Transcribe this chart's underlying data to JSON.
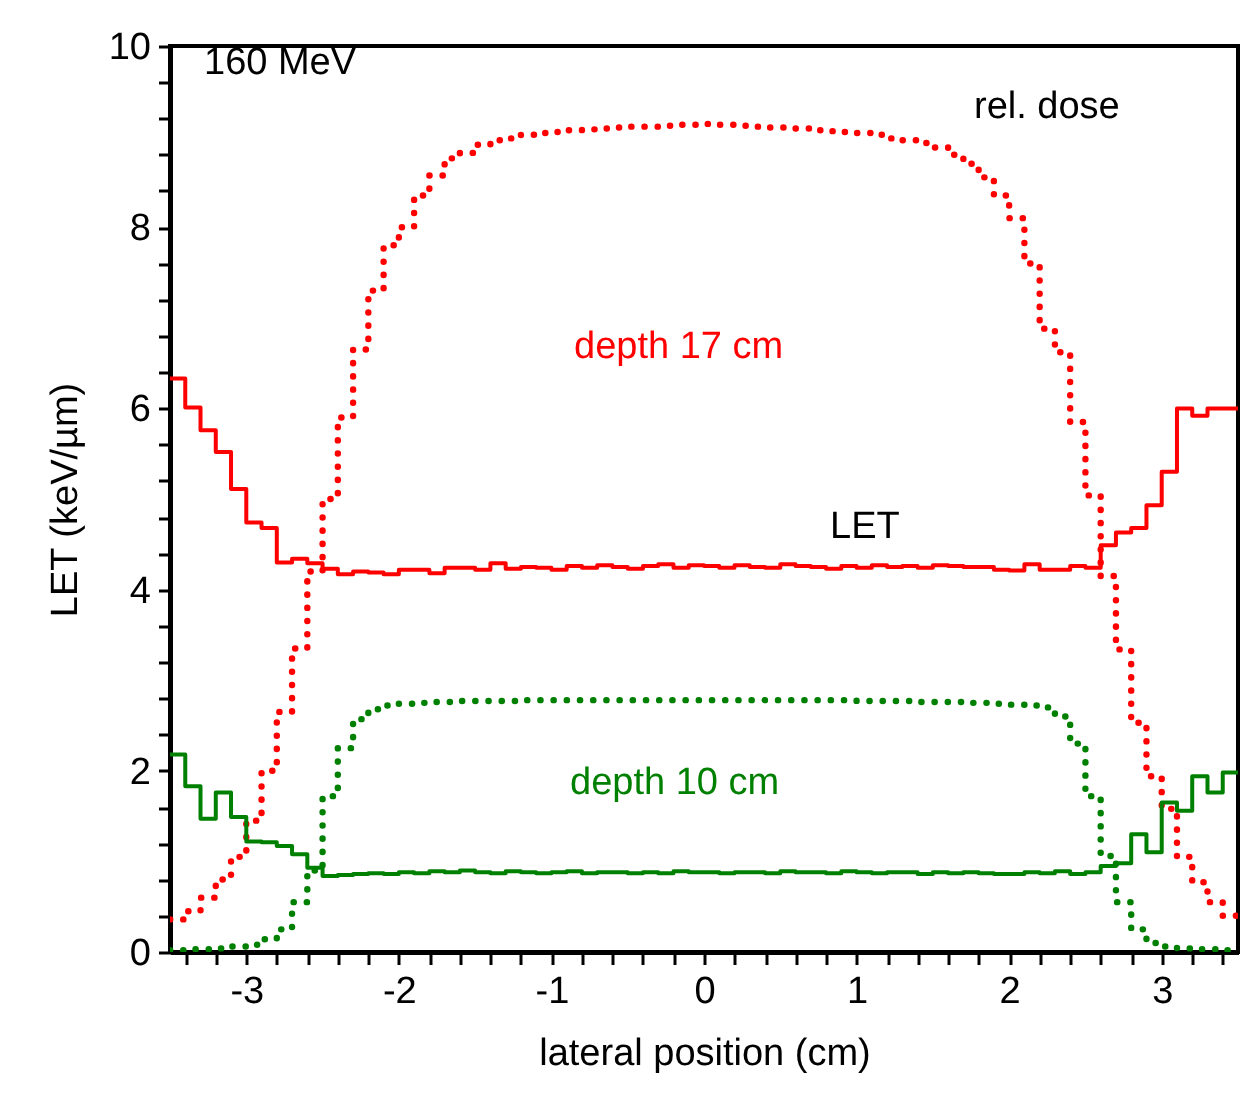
{
  "chart_data": {
    "type": "step",
    "xlabel": "lateral position (cm)",
    "ylabel": "LET (keV/µm)",
    "annotations": [
      "160 MeV",
      "rel. dose",
      "depth 17 cm",
      "LET",
      "depth 10 cm"
    ],
    "x": [
      -3.5,
      -3.4,
      -3.3,
      -3.2,
      -3.1,
      -3.0,
      -2.9,
      -2.8,
      -2.7,
      -2.6,
      -2.5,
      -2.4,
      -2.3,
      -2.2,
      -2.1,
      -2.0,
      -1.9,
      -1.8,
      -1.7,
      -1.6,
      -1.5,
      -1.4,
      -1.3,
      -1.2,
      -1.1,
      -1.0,
      -0.9,
      -0.8,
      -0.7,
      -0.6,
      -0.5,
      -0.4,
      -0.3,
      -0.2,
      -0.1,
      0.0,
      0.1,
      0.2,
      0.3,
      0.4,
      0.5,
      0.6,
      0.7,
      0.8,
      0.9,
      1.0,
      1.1,
      1.2,
      1.3,
      1.4,
      1.5,
      1.6,
      1.7,
      1.8,
      1.9,
      2.0,
      2.1,
      2.2,
      2.3,
      2.4,
      2.5,
      2.6,
      2.7,
      2.8,
      2.9,
      3.0,
      3.1,
      3.2,
      3.3,
      3.4,
      3.5
    ],
    "series": [
      {
        "line_style": "dotted",
        "color": "#ff0000",
        "values": [
          0.36,
          0.45,
          0.6,
          0.8,
          1.05,
          1.45,
          2.0,
          2.65,
          3.35,
          4.2,
          5.0,
          5.9,
          6.65,
          7.3,
          7.8,
          8.0,
          8.35,
          8.57,
          8.76,
          8.82,
          8.91,
          8.96,
          8.98,
          9.02,
          9.04,
          9.05,
          9.07,
          9.08,
          9.09,
          9.1,
          9.11,
          9.11,
          9.12,
          9.13,
          9.13,
          9.14,
          9.13,
          9.12,
          9.11,
          9.1,
          9.1,
          9.09,
          9.07,
          9.06,
          9.05,
          9.04,
          9.02,
          8.98,
          8.96,
          8.93,
          8.88,
          8.8,
          8.7,
          8.55,
          8.35,
          8.1,
          7.6,
          6.88,
          6.62,
          5.85,
          5.04,
          4.15,
          3.34,
          2.53,
          1.94,
          1.58,
          1.05,
          0.77,
          0.55,
          0.4,
          0.4
        ]
      },
      {
        "line_style": "dotted",
        "color": "#008000",
        "values": [
          0.02,
          0.03,
          0.03,
          0.04,
          0.06,
          0.08,
          0.14,
          0.25,
          0.55,
          0.9,
          1.72,
          2.25,
          2.57,
          2.68,
          2.72,
          2.74,
          2.75,
          2.76,
          2.76,
          2.77,
          2.77,
          2.77,
          2.77,
          2.78,
          2.78,
          2.78,
          2.78,
          2.78,
          2.78,
          2.78,
          2.78,
          2.78,
          2.78,
          2.78,
          2.78,
          2.78,
          2.78,
          2.78,
          2.78,
          2.78,
          2.78,
          2.78,
          2.78,
          2.78,
          2.78,
          2.77,
          2.77,
          2.77,
          2.77,
          2.76,
          2.76,
          2.76,
          2.75,
          2.75,
          2.74,
          2.73,
          2.72,
          2.7,
          2.6,
          2.3,
          1.72,
          1.06,
          0.55,
          0.25,
          0.1,
          0.06,
          0.04,
          0.03,
          0.03,
          0.02,
          0.02
        ]
      },
      {
        "line_style": "solid",
        "color": "#ff0000",
        "values": [
          6.33,
          6.01,
          5.76,
          5.52,
          5.11,
          4.74,
          4.68,
          4.3,
          4.34,
          4.29,
          4.23,
          4.17,
          4.2,
          4.19,
          4.17,
          4.22,
          4.22,
          4.18,
          4.24,
          4.24,
          4.22,
          4.29,
          4.23,
          4.25,
          4.24,
          4.22,
          4.26,
          4.24,
          4.27,
          4.25,
          4.23,
          4.26,
          4.28,
          4.24,
          4.27,
          4.26,
          4.24,
          4.27,
          4.25,
          4.24,
          4.28,
          4.26,
          4.25,
          4.23,
          4.26,
          4.24,
          4.27,
          4.25,
          4.26,
          4.24,
          4.27,
          4.26,
          4.25,
          4.25,
          4.22,
          4.21,
          4.28,
          4.22,
          4.22,
          4.26,
          4.24,
          4.49,
          4.63,
          4.68,
          4.93,
          5.3,
          6.0,
          5.92,
          6.0,
          6.0,
          6.0
        ]
      },
      {
        "line_style": "solid",
        "color": "#008000",
        "values": [
          2.18,
          1.83,
          1.47,
          1.76,
          1.49,
          1.22,
          1.21,
          1.17,
          1.08,
          0.93,
          0.84,
          0.85,
          0.86,
          0.87,
          0.86,
          0.88,
          0.87,
          0.89,
          0.88,
          0.9,
          0.88,
          0.87,
          0.89,
          0.88,
          0.87,
          0.88,
          0.89,
          0.87,
          0.88,
          0.88,
          0.87,
          0.88,
          0.87,
          0.89,
          0.88,
          0.88,
          0.87,
          0.88,
          0.88,
          0.87,
          0.89,
          0.88,
          0.88,
          0.87,
          0.89,
          0.88,
          0.87,
          0.88,
          0.88,
          0.86,
          0.88,
          0.87,
          0.88,
          0.87,
          0.86,
          0.86,
          0.88,
          0.87,
          0.89,
          0.86,
          0.88,
          0.95,
          0.98,
          1.3,
          1.1,
          1.65,
          1.56,
          1.94,
          1.76,
          1.98,
          1.98
        ]
      }
    ],
    "xlim": [
      -3.5,
      3.5
    ],
    "xticks": [
      {
        "value": -3.4,
        "label": null
      },
      {
        "value": -3.2,
        "label": null
      },
      -3,
      {
        "value": -2.8,
        "label": null
      },
      {
        "value": -2.6,
        "label": null
      },
      {
        "value": -2.4,
        "label": null
      },
      {
        "value": -2.2,
        "label": null
      },
      -2,
      {
        "value": -1.8,
        "label": null
      },
      {
        "value": -1.6,
        "label": null
      },
      {
        "value": -1.4,
        "label": null
      },
      {
        "value": -1.2,
        "label": null
      },
      -1,
      {
        "value": -0.8,
        "label": null
      },
      {
        "value": -0.6,
        "label": null
      },
      {
        "value": -0.4,
        "label": null
      },
      {
        "value": -0.2,
        "label": null
      },
      0,
      {
        "value": 0.2,
        "label": null
      },
      {
        "value": 0.4,
        "label": null
      },
      {
        "value": 0.6,
        "label": null
      },
      {
        "value": 0.8,
        "label": null
      },
      1,
      {
        "value": 1.2,
        "label": null
      },
      {
        "value": 1.4,
        "label": null
      },
      {
        "value": 1.6,
        "label": null
      },
      {
        "value": 1.8,
        "label": null
      },
      2,
      {
        "value": 2.2,
        "label": null
      },
      {
        "value": 2.4,
        "label": null
      },
      {
        "value": 2.6,
        "label": null
      },
      {
        "value": 2.8,
        "label": null
      },
      3,
      {
        "value": 3.2,
        "label": null
      },
      {
        "value": 3.4,
        "label": null
      }
    ],
    "ylim": [
      0,
      10
    ],
    "yticks": [
      0,
      {
        "value": 0.4,
        "label": null
      },
      {
        "value": 0.8,
        "label": null
      },
      {
        "value": 1.2,
        "label": null
      },
      {
        "value": 1.6,
        "label": null
      },
      2,
      {
        "value": 2.4,
        "label": null
      },
      {
        "value": 2.8,
        "label": null
      },
      {
        "value": 3.2,
        "label": null
      },
      {
        "value": 3.6,
        "label": null
      },
      4,
      {
        "value": 4.4,
        "label": null
      },
      {
        "value": 4.8,
        "label": null
      },
      {
        "value": 5.2,
        "label": null
      },
      {
        "value": 5.6,
        "label": null
      },
      6,
      {
        "value": 6.4,
        "label": null
      },
      {
        "value": 6.8,
        "label": null
      },
      {
        "value": 7.2,
        "label": null
      },
      {
        "value": 7.6,
        "label": null
      },
      8,
      {
        "value": 8.4,
        "label": null
      },
      {
        "value": 8.8,
        "label": null
      },
      {
        "value": 9.2,
        "label": null
      },
      {
        "value": 9.6,
        "label": null
      },
      10
    ]
  }
}
